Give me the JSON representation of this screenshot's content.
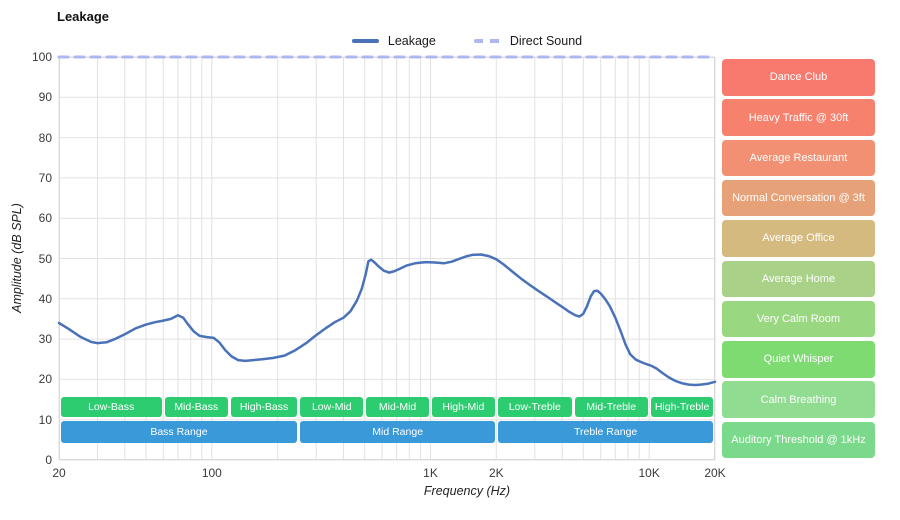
{
  "title": "Leakage",
  "legend": {
    "items": [
      {
        "label": "Leakage",
        "color": "#4a72b8",
        "style": "solid"
      },
      {
        "label": "Direct Sound",
        "color": "#b0b7f0",
        "style": "dashed"
      }
    ]
  },
  "axes": {
    "x_label": "Frequency (Hz)",
    "y_label": "Amplitude (dB SPL)",
    "y_ticks": [
      0,
      10,
      20,
      30,
      40,
      50,
      60,
      70,
      80,
      90,
      100
    ],
    "x_tick_labels": [
      {
        "freq": 20,
        "label": "20"
      },
      {
        "freq": 100,
        "label": "100"
      },
      {
        "freq": 1000,
        "label": "1K"
      },
      {
        "freq": 2000,
        "label": "2K"
      },
      {
        "freq": 10000,
        "label": "10K"
      },
      {
        "freq": 20000,
        "label": "20K"
      }
    ]
  },
  "bands": {
    "sub_color": "#2ecc71",
    "main_color": "#3a99d8",
    "sub": [
      {
        "label": "Low-Bass",
        "from": 20,
        "to": 60
      },
      {
        "label": "Mid-Bass",
        "from": 60,
        "to": 120
      },
      {
        "label": "High-Bass",
        "from": 120,
        "to": 250
      },
      {
        "label": "Low-Mid",
        "from": 250,
        "to": 500
      },
      {
        "label": "Mid-Mid",
        "from": 500,
        "to": 1000
      },
      {
        "label": "High-Mid",
        "from": 1000,
        "to": 2000
      },
      {
        "label": "Low-Treble",
        "from": 2000,
        "to": 4500
      },
      {
        "label": "Mid-Treble",
        "from": 4500,
        "to": 10000
      },
      {
        "label": "High-Treble",
        "from": 10000,
        "to": 20000
      }
    ],
    "main": [
      {
        "label": "Bass Range",
        "from": 20,
        "to": 250
      },
      {
        "label": "Mid Range",
        "from": 250,
        "to": 2000
      },
      {
        "label": "Treble Range",
        "from": 2000,
        "to": 20000
      }
    ]
  },
  "noise_levels": [
    {
      "label": "Dance Club",
      "db_from": 90,
      "db_to": 100,
      "color": "#f87a6e"
    },
    {
      "label": "Heavy Traffic @ 30ft",
      "db_from": 80,
      "db_to": 90,
      "color": "#f6816d"
    },
    {
      "label": "Average Restaurant",
      "db_from": 70,
      "db_to": 80,
      "color": "#f19072"
    },
    {
      "label": "Normal Conversation @ 3ft",
      "db_from": 60,
      "db_to": 70,
      "color": "#e7a178"
    },
    {
      "label": "Average Office",
      "db_from": 50,
      "db_to": 60,
      "color": "#d4ba7e"
    },
    {
      "label": "Average Home",
      "db_from": 40,
      "db_to": 50,
      "color": "#a9d288"
    },
    {
      "label": "Very Calm Room",
      "db_from": 30,
      "db_to": 40,
      "color": "#99d881"
    },
    {
      "label": "Quiet Whisper",
      "db_from": 20,
      "db_to": 30,
      "color": "#7edb72"
    },
    {
      "label": "Calm Breathing",
      "db_from": 10,
      "db_to": 20,
      "color": "#90dc90"
    },
    {
      "label": "Auditory Threshold @ 1kHz",
      "db_from": 0,
      "db_to": 10,
      "color": "#7bd98b"
    }
  ],
  "chart_data": {
    "type": "line",
    "title": "Leakage",
    "xlabel": "Frequency (Hz)",
    "ylabel": "Amplitude (dB SPL)",
    "x_scale": "log",
    "xlim": [
      20,
      20000
    ],
    "ylim": [
      0,
      100
    ],
    "grid": true,
    "legend_position": "top-center",
    "series": [
      {
        "name": "Leakage",
        "color": "#4a72b8",
        "style": "solid",
        "x": [
          20,
          22,
          25,
          28,
          30,
          33,
          36,
          40,
          45,
          50,
          55,
          60,
          65,
          70,
          74,
          78,
          83,
          88,
          95,
          102,
          108,
          115,
          123,
          132,
          142,
          155,
          170,
          190,
          215,
          240,
          270,
          300,
          330,
          365,
          400,
          430,
          460,
          485,
          505,
          520,
          535,
          555,
          580,
          610,
          645,
          680,
          720,
          780,
          850,
          950,
          1050,
          1150,
          1250,
          1350,
          1450,
          1550,
          1700,
          1850,
          2000,
          2150,
          2350,
          2600,
          2850,
          3100,
          3400,
          3700,
          4000,
          4300,
          4600,
          4800,
          5000,
          5200,
          5400,
          5600,
          5800,
          6000,
          6300,
          6600,
          7000,
          7400,
          7800,
          8200,
          8700,
          9200,
          9700,
          10200,
          10800,
          11500,
          12300,
          13200,
          14200,
          15200,
          16200,
          17200,
          18500,
          20000
        ],
        "y": [
          34,
          32.6,
          30.6,
          29.3,
          29,
          29.2,
          30,
          31.2,
          32.7,
          33.6,
          34.2,
          34.6,
          35,
          35.9,
          35.3,
          33.6,
          31.8,
          30.8,
          30.5,
          30.3,
          29.2,
          27.3,
          25.7,
          24.8,
          24.6,
          24.8,
          25,
          25.3,
          25.9,
          27.2,
          29,
          31,
          32.6,
          34.2,
          35.3,
          36.9,
          39.5,
          42.5,
          46,
          49.3,
          49.7,
          49,
          48,
          47,
          46.5,
          46.8,
          47.4,
          48.3,
          48.8,
          49.1,
          49,
          48.8,
          49.2,
          49.9,
          50.5,
          50.9,
          51,
          50.6,
          49.8,
          48.6,
          46.9,
          45,
          43.4,
          42,
          40.6,
          39.2,
          38,
          36.8,
          35.9,
          35.6,
          36.3,
          38.2,
          40.6,
          41.9,
          42,
          41.3,
          39.9,
          38.2,
          35.3,
          32,
          28.6,
          26.2,
          24.9,
          24.3,
          23.8,
          23.4,
          22.7,
          21.6,
          20.5,
          19.6,
          19,
          18.7,
          18.6,
          18.7,
          18.9,
          19.4
        ]
      },
      {
        "name": "Direct Sound",
        "color": "#b0b7f0",
        "style": "dashed",
        "x": [
          20,
          20000
        ],
        "y": [
          100,
          100
        ]
      }
    ]
  }
}
